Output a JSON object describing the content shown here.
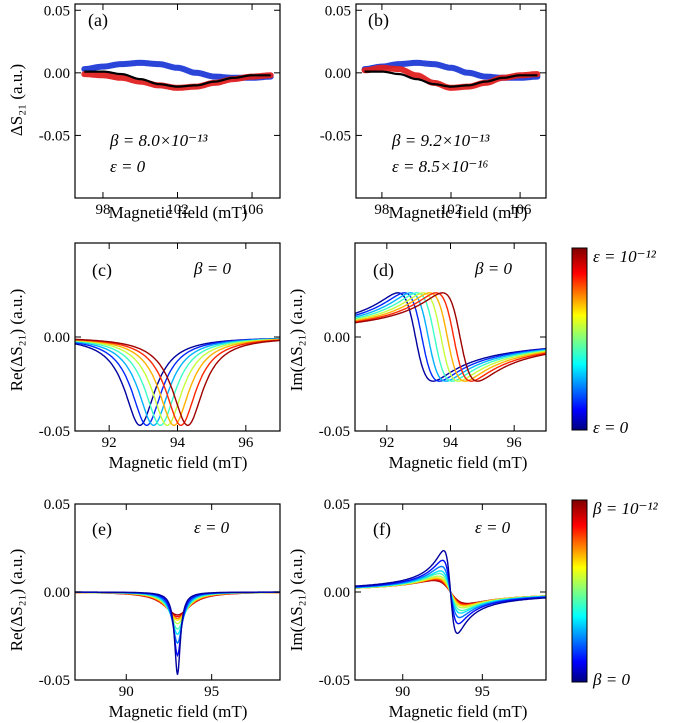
{
  "chart_data": [
    {
      "id": "a",
      "type": "scatter",
      "panel_label": "(a)",
      "xlabel": "Magnetic field (mT)",
      "ylabel": "ΔS₂₁ (a.u.)",
      "xlim": [
        96.5,
        107.5
      ],
      "ylim": [
        -0.1,
        0.055
      ],
      "xticks": [
        98,
        102,
        106
      ],
      "xtick_labels": [
        "98",
        "102",
        "106"
      ],
      "yticks": [
        0.05,
        0.0,
        -0.05
      ],
      "ytick_labels": [
        "0.05",
        "0.00",
        "-0.05"
      ],
      "annotations": [
        "β = 8.0×10⁻¹³",
        "ε = 0"
      ],
      "series": [
        {
          "color": "#1f3bd6",
          "marker": "square",
          "x": [
            97,
            98,
            99,
            100,
            101,
            102,
            103,
            104,
            105,
            106,
            107
          ],
          "y": [
            0.003,
            0.005,
            0.007,
            0.008,
            0.007,
            0.004,
            0.0,
            -0.003,
            -0.004,
            -0.004,
            -0.003
          ]
        },
        {
          "color": "#e02020",
          "marker": "circle",
          "x": [
            97,
            98,
            99,
            100,
            101,
            102,
            103,
            104,
            105,
            106,
            107
          ],
          "y": [
            -0.001,
            -0.002,
            -0.004,
            -0.007,
            -0.01,
            -0.012,
            -0.011,
            -0.008,
            -0.005,
            -0.003,
            -0.002
          ]
        },
        {
          "color": "#000000",
          "marker": "line",
          "x": [
            97,
            98,
            99,
            100,
            101,
            102,
            103,
            104,
            105,
            106,
            107
          ],
          "y": [
            0.001,
            0.001,
            -0.001,
            -0.005,
            -0.009,
            -0.011,
            -0.01,
            -0.007,
            -0.004,
            -0.002,
            -0.002
          ]
        }
      ]
    },
    {
      "id": "b",
      "type": "scatter",
      "panel_label": "(b)",
      "xlabel": "Magnetic field (mT)",
      "ylabel": "",
      "xlim": [
        96.5,
        107.5
      ],
      "ylim": [
        -0.1,
        0.055
      ],
      "xticks": [
        98,
        102,
        106
      ],
      "xtick_labels": [
        "98",
        "102",
        "106"
      ],
      "yticks": [
        0.05,
        0.0,
        -0.05
      ],
      "ytick_labels": [
        "0.05",
        "0.00",
        "-0.05"
      ],
      "annotations": [
        "β = 9.2×10⁻¹³",
        "ε = 8.5×10⁻¹⁶"
      ],
      "series": [
        {
          "color": "#1f3bd6",
          "marker": "square",
          "x": [
            97,
            98,
            99,
            100,
            101,
            102,
            103,
            104,
            105,
            106,
            107
          ],
          "y": [
            0.003,
            0.005,
            0.007,
            0.008,
            0.007,
            0.004,
            0.0,
            -0.003,
            -0.004,
            -0.004,
            -0.003
          ]
        },
        {
          "color": "#e02020",
          "marker": "circle",
          "x": [
            97,
            98,
            99,
            100,
            101,
            102,
            103,
            104,
            105,
            106,
            107
          ],
          "y": [
            0.002,
            0.004,
            0.003,
            -0.002,
            -0.008,
            -0.012,
            -0.011,
            -0.008,
            -0.004,
            -0.002,
            -0.001
          ]
        },
        {
          "color": "#000000",
          "marker": "line",
          "x": [
            97,
            98,
            99,
            100,
            101,
            102,
            103,
            104,
            105,
            106,
            107
          ],
          "y": [
            0.001,
            0.001,
            -0.001,
            -0.005,
            -0.009,
            -0.011,
            -0.01,
            -0.007,
            -0.004,
            -0.002,
            -0.002
          ]
        }
      ]
    },
    {
      "id": "c",
      "type": "line",
      "panel_label": "(c)",
      "xlabel": "Magnetic field (mT)",
      "ylabel": "Re(ΔS₂₁) (a.u.)",
      "xlim": [
        91,
        97
      ],
      "ylim": [
        -0.05,
        0.05
      ],
      "xticks": [
        92,
        94,
        96
      ],
      "xtick_labels": [
        "92",
        "94",
        "96"
      ],
      "yticks": [
        0.0,
        -0.05
      ],
      "ytick_labels": [
        "0.00",
        "-0.05"
      ],
      "annotations": [
        "β = 0"
      ],
      "family": {
        "kind": "lorentz_re",
        "centers": [
          92.9,
          93.1,
          93.3,
          93.5,
          93.7,
          93.9,
          94.1,
          94.3
        ],
        "amplitude": 0.047,
        "width": 0.55,
        "colormap": "jet"
      }
    },
    {
      "id": "d",
      "type": "line",
      "panel_label": "(d)",
      "xlabel": "Magnetic field (mT)",
      "ylabel": "Im(ΔS₂₁) (a.u.)",
      "xlim": [
        91,
        97
      ],
      "ylim": [
        -0.05,
        0.05
      ],
      "xticks": [
        92,
        94,
        96
      ],
      "xtick_labels": [
        "92",
        "94",
        "96"
      ],
      "yticks": [
        0.0,
        -0.05
      ],
      "ytick_labels": [
        "0.00",
        "-0.05"
      ],
      "annotations": [
        "β = 0"
      ],
      "family": {
        "kind": "lorentz_im",
        "centers": [
          92.9,
          93.1,
          93.3,
          93.5,
          93.7,
          93.9,
          94.1,
          94.3
        ],
        "amplitude": 0.047,
        "width": 0.55,
        "colormap": "jet"
      }
    },
    {
      "id": "e",
      "type": "line",
      "panel_label": "(e)",
      "xlabel": "Magnetic field (mT)",
      "ylabel": "Re(ΔS₂₁) (a.u.)",
      "xlim": [
        87,
        99
      ],
      "ylim": [
        -0.05,
        0.05
      ],
      "xticks": [
        90,
        95
      ],
      "xtick_labels": [
        "90",
        "95"
      ],
      "yticks": [
        0.05,
        0.0,
        -0.05
      ],
      "ytick_labels": [
        "0.05",
        "0.00",
        "-0.05"
      ],
      "annotations": [
        "ε = 0"
      ],
      "family": {
        "kind": "lorentz_re",
        "center": 93.0,
        "amplitudes": [
          0.047,
          0.036,
          0.029,
          0.024,
          0.021,
          0.018,
          0.016,
          0.015,
          0.014,
          0.013
        ],
        "widths": [
          0.2,
          0.27,
          0.35,
          0.43,
          0.51,
          0.6,
          0.68,
          0.76,
          0.85,
          0.93
        ],
        "colormap": "jet"
      }
    },
    {
      "id": "f",
      "type": "line",
      "panel_label": "(f)",
      "xlabel": "Magnetic field (mT)",
      "ylabel": "Im(ΔS₂₁) (a.u.)",
      "xlim": [
        87,
        99
      ],
      "ylim": [
        -0.05,
        0.05
      ],
      "xticks": [
        90,
        95
      ],
      "xtick_labels": [
        "90",
        "95"
      ],
      "yticks": [
        0.05,
        0.0,
        -0.05
      ],
      "ytick_labels": [
        "0.05",
        "0.00",
        "-0.05"
      ],
      "annotations": [
        "ε = 0"
      ],
      "family": {
        "kind": "lorentz_im",
        "center": 93.0,
        "amplitudes": [
          0.047,
          0.036,
          0.029,
          0.024,
          0.021,
          0.018,
          0.016,
          0.015,
          0.014,
          0.013
        ],
        "widths": [
          0.43,
          0.5,
          0.57,
          0.64,
          0.71,
          0.78,
          0.85,
          0.92,
          0.99,
          1.06
        ],
        "colormap": "jet"
      }
    }
  ],
  "colorbars": [
    {
      "top_label": "ε = 10⁻¹²",
      "bottom_label": "ε = 0"
    },
    {
      "top_label": "β = 10⁻¹²",
      "bottom_label": "β = 0"
    }
  ]
}
